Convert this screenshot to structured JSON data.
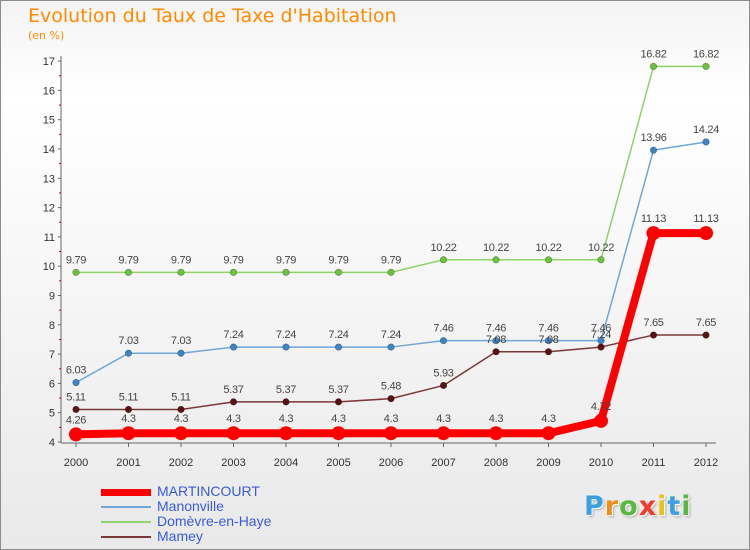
{
  "header": {
    "title": "Evolution du Taux de Taxe d'Habitation",
    "subtitle": "(en %)"
  },
  "colors": {
    "title": "#ff8a00",
    "legend_text": "#3b5bdb"
  },
  "logo": {
    "text": "Proxiti",
    "letter_colors": [
      "#3aa0e0",
      "#f08c1a",
      "#58b83f",
      "#ef3b2c",
      "#e9c21a",
      "#3aa0e0",
      "#58b83f"
    ]
  },
  "chart_data": {
    "type": "line",
    "title": "Evolution du Taux de Taxe d'Habitation",
    "subtitle": "(en %)",
    "x": [
      "2000",
      "2001",
      "2002",
      "2003",
      "2004",
      "2005",
      "2006",
      "2007",
      "2008",
      "2009",
      "2010",
      "2011",
      "2012"
    ],
    "ylim": [
      4,
      17
    ],
    "yticks": [
      "4",
      "5",
      "6",
      "7",
      "8",
      "9",
      "10",
      "11",
      "12",
      "13",
      "14",
      "15",
      "16",
      "17"
    ],
    "grid": false,
    "legend_position": "bottom-left",
    "series": [
      {
        "name": "Mamey",
        "color": "#7a3838",
        "marker": "#5a1212",
        "values": [
          5.11,
          5.11,
          5.11,
          5.37,
          5.37,
          5.37,
          5.48,
          5.93,
          7.08,
          7.08,
          7.24,
          7.65,
          7.65
        ],
        "labels": [
          "5.11",
          "5.11",
          "5.11",
          "5.37",
          "5.37",
          "5.37",
          "5.48",
          "5.93",
          "7.08",
          "7.08",
          "7.24",
          "7.65",
          "7.65"
        ]
      },
      {
        "name": "Domèvre-en-Haye",
        "color": "#8fd36a",
        "marker": "#6cc13d",
        "values": [
          9.79,
          9.79,
          9.79,
          9.79,
          9.79,
          9.79,
          9.79,
          10.22,
          10.22,
          10.22,
          10.22,
          16.82,
          16.82
        ],
        "labels": [
          "9.79",
          "9.79",
          "9.79",
          "9.79",
          "9.79",
          "9.79",
          "9.79",
          "10.22",
          "10.22",
          "10.22",
          "10.22",
          "16.82",
          "16.82"
        ]
      },
      {
        "name": "Manonville",
        "color": "#6fa7d8",
        "marker": "#3c86c8",
        "values": [
          6.03,
          7.03,
          7.03,
          7.24,
          7.24,
          7.24,
          7.24,
          7.46,
          7.46,
          7.46,
          7.46,
          13.96,
          14.24
        ],
        "labels": [
          "6.03",
          "7.03",
          "7.03",
          "7.24",
          "7.24",
          "7.24",
          "7.24",
          "7.46",
          "7.46",
          "7.46",
          "7.46",
          "13.96",
          "14.24"
        ]
      },
      {
        "name": "MARTINCOURT",
        "color": "#ff0000",
        "marker": "#ff0000",
        "values": [
          4.26,
          4.3,
          4.3,
          4.3,
          4.3,
          4.3,
          4.3,
          4.3,
          4.3,
          4.3,
          4.72,
          11.13,
          11.13
        ],
        "labels": [
          "4.26",
          "4.3",
          "4.3",
          "4.3",
          "4.3",
          "4.3",
          "4.3",
          "4.3",
          "4.3",
          "4.3",
          "4.72",
          "11.13",
          "11.13"
        ]
      }
    ],
    "legend_order": [
      "MARTINCOURT",
      "Manonville",
      "Domèvre-en-Haye",
      "Mamey"
    ]
  }
}
